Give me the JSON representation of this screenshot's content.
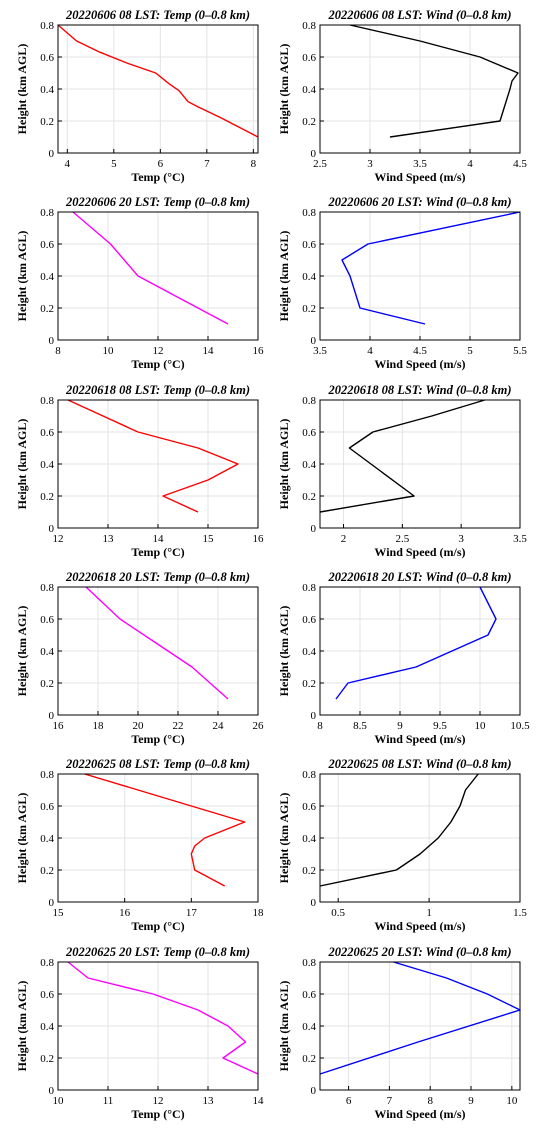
{
  "chart_data": [
    {
      "type": "line",
      "title": "20220606 08 LST: Temp (0–0.8 km)",
      "xlabel": "Temp (°C)",
      "ylabel": "Height (km AGL)",
      "xlim": [
        3.8,
        8.1
      ],
      "ylim": [
        0,
        0.8
      ],
      "xticks": [
        "4",
        "5",
        "6",
        "7",
        "8"
      ],
      "xtick_values": [
        4,
        5,
        6,
        7,
        8
      ],
      "yticks": [
        "0",
        "0.2",
        "0.4",
        "0.6",
        "0.8"
      ],
      "ytick_values": [
        0,
        0.2,
        0.4,
        0.6,
        0.8
      ],
      "grid": true,
      "color": "#ff0000",
      "x": [
        8.1,
        7.7,
        7.3,
        6.8,
        6.6,
        6.4,
        6.2,
        5.9,
        5.3,
        4.7,
        4.2,
        3.8
      ],
      "y": [
        0.1,
        0.16,
        0.22,
        0.29,
        0.32,
        0.39,
        0.43,
        0.5,
        0.56,
        0.63,
        0.7,
        0.8
      ]
    },
    {
      "type": "line",
      "title": "20220606 08 LST: Wind (0–0.8 km)",
      "xlabel": "Wind Speed (m/s)",
      "ylabel": "Height (km AGL)",
      "xlim": [
        2.5,
        4.5
      ],
      "ylim": [
        0,
        0.8
      ],
      "xticks": [
        "2.5",
        "3",
        "3.5",
        "4",
        "4.5"
      ],
      "xtick_values": [
        2.5,
        3,
        3.5,
        4,
        4.5
      ],
      "yticks": [
        "0",
        "0.2",
        "0.4",
        "0.6",
        "0.8"
      ],
      "ytick_values": [
        0,
        0.2,
        0.4,
        0.6,
        0.8
      ],
      "grid": true,
      "color": "#000000",
      "x": [
        3.2,
        4.3,
        4.35,
        4.4,
        4.42,
        4.48,
        4.1,
        3.5,
        2.8
      ],
      "y": [
        0.1,
        0.2,
        0.3,
        0.4,
        0.45,
        0.5,
        0.6,
        0.7,
        0.8
      ]
    },
    {
      "type": "line",
      "title": "20220606 20 LST: Temp (0–0.8 km)",
      "xlabel": "Temp (°C)",
      "ylabel": "Height (km AGL)",
      "xlim": [
        8,
        16
      ],
      "ylim": [
        0,
        0.8
      ],
      "xticks": [
        "8",
        "10",
        "12",
        "14",
        "16"
      ],
      "xtick_values": [
        8,
        10,
        12,
        14,
        16
      ],
      "yticks": [
        "0",
        "0.2",
        "0.4",
        "0.6",
        "0.8"
      ],
      "ytick_values": [
        0,
        0.2,
        0.4,
        0.6,
        0.8
      ],
      "grid": true,
      "color": "#ff00ff",
      "x": [
        14.8,
        13.6,
        12.4,
        11.2,
        10.1,
        8.6
      ],
      "y": [
        0.1,
        0.2,
        0.3,
        0.4,
        0.6,
        0.8
      ]
    },
    {
      "type": "line",
      "title": "20220606 20 LST: Wind (0–0.8 km)",
      "xlabel": "Wind Speed (m/s)",
      "ylabel": "Height (km AGL)",
      "xlim": [
        3.5,
        5.5
      ],
      "ylim": [
        0,
        0.8
      ],
      "xticks": [
        "3.5",
        "4",
        "4.5",
        "5",
        "5.5"
      ],
      "xtick_values": [
        3.5,
        4,
        4.5,
        5,
        5.5
      ],
      "yticks": [
        "0",
        "0.2",
        "0.4",
        "0.6",
        "0.8"
      ],
      "ytick_values": [
        0,
        0.2,
        0.4,
        0.6,
        0.8
      ],
      "grid": true,
      "color": "#0000ff",
      "x": [
        4.55,
        3.9,
        3.8,
        3.72,
        3.98,
        5.5
      ],
      "y": [
        0.1,
        0.2,
        0.4,
        0.5,
        0.6,
        0.8
      ]
    },
    {
      "type": "line",
      "title": "20220618 08 LST: Temp (0–0.8 km)",
      "xlabel": "Temp (°C)",
      "ylabel": "Height (km AGL)",
      "xlim": [
        12,
        16
      ],
      "ylim": [
        0,
        0.8
      ],
      "xticks": [
        "12",
        "13",
        "14",
        "15",
        "16"
      ],
      "xtick_values": [
        12,
        13,
        14,
        15,
        16
      ],
      "yticks": [
        "0",
        "0.2",
        "0.4",
        "0.6",
        "0.8"
      ],
      "ytick_values": [
        0,
        0.2,
        0.4,
        0.6,
        0.8
      ],
      "grid": true,
      "color": "#ff0000",
      "x": [
        14.8,
        14.1,
        15.0,
        15.6,
        14.8,
        13.6,
        12.9,
        12.2
      ],
      "y": [
        0.1,
        0.2,
        0.3,
        0.4,
        0.5,
        0.6,
        0.7,
        0.8
      ]
    },
    {
      "type": "line",
      "title": "20220618 08 LST: Wind (0–0.8 km)",
      "xlabel": "Wind Speed (m/s)",
      "ylabel": "Height (km AGL)",
      "xlim": [
        1.8,
        3.5
      ],
      "ylim": [
        0,
        0.8
      ],
      "xticks": [
        "2",
        "2.5",
        "3",
        "3.5"
      ],
      "xtick_values": [
        2,
        2.5,
        3,
        3.5
      ],
      "yticks": [
        "0",
        "0.2",
        "0.4",
        "0.6",
        "0.8"
      ],
      "ytick_values": [
        0,
        0.2,
        0.4,
        0.6,
        0.8
      ],
      "grid": true,
      "color": "#000000",
      "x": [
        1.8,
        2.6,
        2.05,
        2.25,
        2.75,
        3.2
      ],
      "y": [
        0.1,
        0.2,
        0.5,
        0.6,
        0.7,
        0.8
      ]
    },
    {
      "type": "line",
      "title": "20220618 20 LST: Temp (0–0.8 km)",
      "xlabel": "Temp (°C)",
      "ylabel": "Height (km AGL)",
      "xlim": [
        16,
        26
      ],
      "ylim": [
        0,
        0.8
      ],
      "xticks": [
        "16",
        "18",
        "20",
        "22",
        "24",
        "26"
      ],
      "xtick_values": [
        16,
        18,
        20,
        22,
        24,
        26
      ],
      "yticks": [
        "0",
        "0.2",
        "0.4",
        "0.6",
        "0.8"
      ],
      "ytick_values": [
        0,
        0.2,
        0.4,
        0.6,
        0.8
      ],
      "grid": true,
      "color": "#ff00ff",
      "x": [
        24.5,
        23.6,
        22.7,
        20.9,
        19.1,
        17.4
      ],
      "y": [
        0.1,
        0.2,
        0.3,
        0.45,
        0.6,
        0.8
      ]
    },
    {
      "type": "line",
      "title": "20220618 20 LST: Wind (0–0.8 km)",
      "xlabel": "Wind Speed (m/s)",
      "ylabel": "Height (km AGL)",
      "xlim": [
        8,
        10.5
      ],
      "ylim": [
        0,
        0.8
      ],
      "xticks": [
        "8",
        "8.5",
        "9",
        "9.5",
        "10",
        "10.5"
      ],
      "xtick_values": [
        8,
        8.5,
        9,
        9.5,
        10,
        10.5
      ],
      "yticks": [
        "0",
        "0.2",
        "0.4",
        "0.6",
        "0.8"
      ],
      "ytick_values": [
        0,
        0.2,
        0.4,
        0.6,
        0.8
      ],
      "grid": true,
      "color": "#0000ff",
      "x": [
        8.2,
        8.35,
        9.2,
        10.1,
        10.15,
        10.2,
        10.0
      ],
      "y": [
        0.1,
        0.2,
        0.3,
        0.5,
        0.55,
        0.6,
        0.8
      ]
    },
    {
      "type": "line",
      "title": "20220625 08 LST: Temp (0–0.8 km)",
      "xlabel": "Temp (°C)",
      "ylabel": "Height (km AGL)",
      "xlim": [
        15,
        18
      ],
      "ylim": [
        0,
        0.8
      ],
      "xticks": [
        "15",
        "16",
        "17",
        "18"
      ],
      "xtick_values": [
        15,
        16,
        17,
        18
      ],
      "yticks": [
        "0",
        "0.2",
        "0.4",
        "0.6",
        "0.8"
      ],
      "ytick_values": [
        0,
        0.2,
        0.4,
        0.6,
        0.8
      ],
      "grid": true,
      "color": "#ff0000",
      "x": [
        17.5,
        17.05,
        17.0,
        17.05,
        17.2,
        17.8,
        17.0,
        16.2,
        15.4
      ],
      "y": [
        0.1,
        0.2,
        0.3,
        0.35,
        0.4,
        0.5,
        0.6,
        0.7,
        0.8
      ]
    },
    {
      "type": "line",
      "title": "20220625 08 LST: Wind (0–0.8 km)",
      "xlabel": "Wind Speed (m/s)",
      "ylabel": "Height (km AGL)",
      "xlim": [
        0.4,
        1.5
      ],
      "ylim": [
        0,
        0.8
      ],
      "xticks": [
        "0.5",
        "1",
        "1.5"
      ],
      "xtick_values": [
        0.5,
        1,
        1.5
      ],
      "yticks": [
        "0",
        "0.2",
        "0.4",
        "0.6",
        "0.8"
      ],
      "ytick_values": [
        0,
        0.2,
        0.4,
        0.6,
        0.8
      ],
      "grid": true,
      "color": "#000000",
      "x": [
        0.4,
        0.82,
        0.95,
        1.05,
        1.12,
        1.17,
        1.2,
        1.27
      ],
      "y": [
        0.1,
        0.2,
        0.3,
        0.4,
        0.5,
        0.6,
        0.7,
        0.8
      ]
    },
    {
      "type": "line",
      "title": "20220625 20 LST: Temp (0–0.8 km)",
      "xlabel": "Temp (°C)",
      "ylabel": "Height (km AGL)",
      "xlim": [
        10,
        14
      ],
      "ylim": [
        0,
        0.8
      ],
      "xticks": [
        "10",
        "11",
        "12",
        "13",
        "14"
      ],
      "xtick_values": [
        10,
        11,
        12,
        13,
        14
      ],
      "yticks": [
        "0",
        "0.2",
        "0.4",
        "0.6",
        "0.8"
      ],
      "ytick_values": [
        0,
        0.2,
        0.4,
        0.6,
        0.8
      ],
      "grid": true,
      "color": "#ff00ff",
      "x": [
        14.0,
        13.3,
        13.75,
        13.4,
        12.8,
        11.9,
        10.6,
        10.2
      ],
      "y": [
        0.1,
        0.2,
        0.3,
        0.4,
        0.5,
        0.6,
        0.7,
        0.8
      ]
    },
    {
      "type": "line",
      "title": "20220625 20 LST: Wind (0–0.8 km)",
      "xlabel": "Wind Speed (m/s)",
      "ylabel": "Height (km AGL)",
      "xlim": [
        5.3,
        10.2
      ],
      "ylim": [
        0,
        0.8
      ],
      "xticks": [
        "6",
        "7",
        "8",
        "9",
        "10"
      ],
      "xtick_values": [
        6,
        7,
        8,
        9,
        10
      ],
      "yticks": [
        "0",
        "0.2",
        "0.4",
        "0.6",
        "0.8"
      ],
      "ytick_values": [
        0,
        0.2,
        0.4,
        0.6,
        0.8
      ],
      "grid": true,
      "color": "#0000ff",
      "x": [
        5.3,
        7.7,
        10.2,
        9.4,
        8.4,
        7.1
      ],
      "y": [
        0.1,
        0.3,
        0.5,
        0.6,
        0.7,
        0.8
      ]
    }
  ]
}
